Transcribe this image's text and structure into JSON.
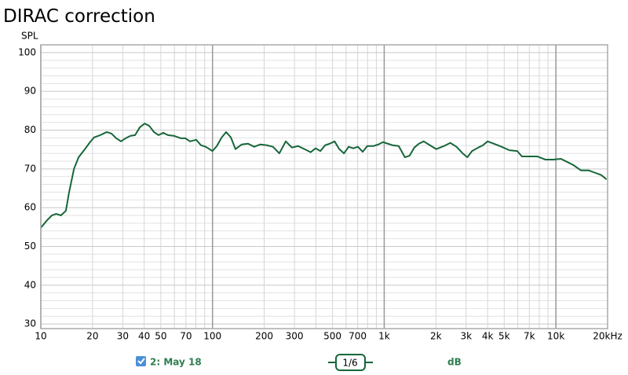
{
  "chart_data": {
    "type": "line",
    "title": "DIRAC correction",
    "y_label": "SPL",
    "log_x": true,
    "grid": true,
    "xlim": [
      10,
      20000
    ],
    "ylim": [
      28.8,
      102
    ],
    "xticks": [
      10,
      20,
      30,
      40,
      50,
      70,
      100,
      200,
      300,
      500,
      700,
      {
        "value": 1000,
        "label": "1k"
      },
      {
        "value": 2000,
        "label": "2k"
      },
      {
        "value": 3000,
        "label": "3k"
      },
      {
        "value": 4000,
        "label": "4k"
      },
      {
        "value": 5000,
        "label": "5k"
      },
      {
        "value": 7000,
        "label": "7k"
      },
      {
        "value": 10000,
        "label": "10k"
      },
      {
        "value": 20000,
        "label": "20kHz"
      }
    ],
    "x_minor_ticks": [
      60,
      80,
      90,
      400,
      600,
      800,
      900,
      6000,
      8000,
      9000
    ],
    "yticks": [
      30,
      40,
      50,
      60,
      70,
      80,
      90,
      100
    ],
    "y_minor_ticks": [
      32,
      34,
      36,
      38,
      42,
      44,
      46,
      48,
      52,
      54,
      56,
      58,
      62,
      64,
      66,
      68,
      72,
      74,
      76,
      78,
      82,
      84,
      86,
      88,
      92,
      94,
      96,
      98,
      102
    ],
    "x": [
      10,
      10.9,
      11.6,
      12.3,
      13.1,
      14,
      14.6,
      15.6,
      16.6,
      18,
      19.2,
      20.4,
      22.2,
      24.2,
      25.8,
      27.5,
      29.3,
      31.2,
      33.2,
      35.4,
      37.7,
      40.2,
      42.8,
      45.6,
      48.5,
      51.7,
      55,
      59.9,
      65.2,
      69.4,
      73.9,
      80.4,
      85.6,
      91.2,
      100,
      106,
      113,
      120,
      128,
      136,
      148,
      161,
      175,
      190,
      207,
      225,
      245,
      267,
      290,
      315,
      343,
      373,
      398,
      425,
      453,
      482,
      514,
      547,
      583,
      621,
      660,
      703,
      749,
      797,
      868,
      925,
      985,
      1049,
      1117,
      1214,
      1320,
      1405,
      1497,
      1594,
      1698,
      1846,
      2007,
      2231,
      2425,
      2636,
      2865,
      3050,
      3248,
      3530,
      3759,
      4002,
      4350,
      4829,
      5362,
      5953,
      6339,
      7036,
      7811,
      8671,
      9628,
      10688,
      11614,
      12620,
      14010,
      15553,
      16906,
      18376,
      19711
    ],
    "series": [
      {
        "name": "2: May 18",
        "color": "#17663a",
        "values": [
          54.8,
          56.8,
          58.0,
          58.4,
          58.0,
          59.2,
          63.9,
          70.0,
          73.0,
          75.0,
          76.7,
          78.1,
          78.7,
          79.5,
          79.1,
          77.9,
          77.1,
          77.9,
          78.5,
          78.7,
          80.7,
          81.7,
          81.1,
          79.5,
          78.7,
          79.3,
          78.7,
          78.5,
          77.9,
          77.9,
          77.1,
          77.5,
          76.1,
          75.7,
          74.6,
          75.9,
          78.1,
          79.5,
          78.1,
          75.1,
          76.3,
          76.5,
          75.7,
          76.3,
          76.1,
          75.7,
          74.0,
          77.1,
          75.5,
          75.9,
          75.1,
          74.3,
          75.3,
          74.6,
          76.1,
          76.5,
          77.1,
          75.1,
          74.0,
          75.7,
          75.3,
          75.7,
          74.4,
          75.9,
          75.9,
          76.3,
          76.9,
          76.5,
          76.1,
          75.9,
          73.0,
          73.4,
          75.5,
          76.5,
          77.1,
          76.1,
          75.1,
          75.9,
          76.7,
          75.7,
          74.0,
          73.0,
          74.6,
          75.5,
          76.1,
          77.1,
          76.5,
          75.7,
          74.8,
          74.6,
          73.2,
          73.2,
          73.2,
          72.4,
          72.4,
          72.6,
          71.8,
          71.0,
          69.6,
          69.6,
          69.0,
          68.4,
          67.3
        ]
      }
    ],
    "smoothing": "1/6",
    "unit": "dB"
  }
}
